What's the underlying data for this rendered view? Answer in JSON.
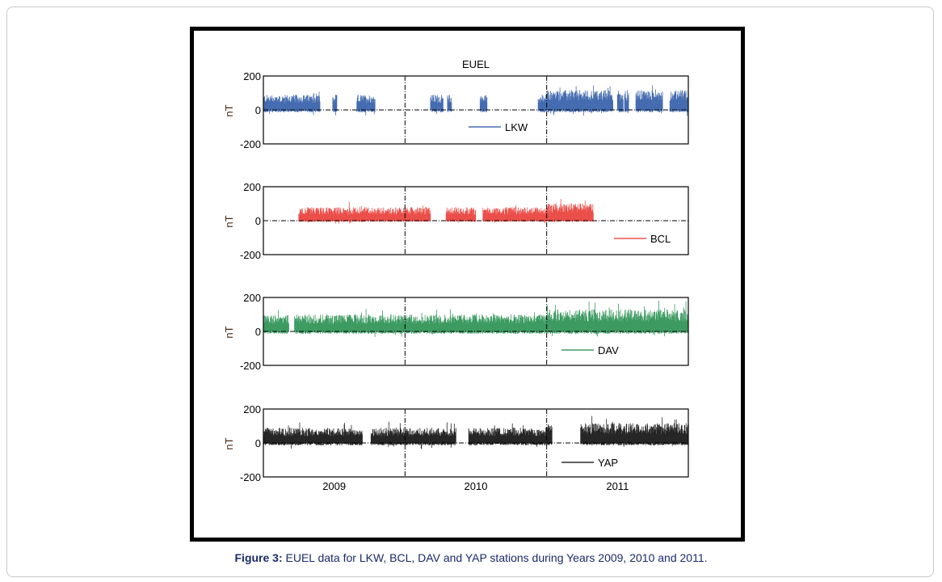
{
  "caption": {
    "label": "Figure 3:",
    "text": " EUEL data for LKW, BCL, DAV and YAP stations during Years 2009, 2010 and 2011."
  },
  "chart_data": {
    "type": "line",
    "title": "EUEL",
    "xlabel": "",
    "ylabel": "nT",
    "xlim": [
      2008.5,
      2011.5
    ],
    "ylim": [
      -200,
      200
    ],
    "yticks": [
      "200",
      "0",
      "-200"
    ],
    "xticks": [
      {
        "value": 2009,
        "label": "2009"
      },
      {
        "value": 2010,
        "label": "2010"
      },
      {
        "value": 2011,
        "label": "2011"
      }
    ],
    "year_dividers": [
      2009.5,
      2010.5
    ],
    "series": [
      {
        "name": "LKW",
        "color": "#2452a2",
        "typical_max": 90,
        "typical_min": -20,
        "segments": [
          [
            2008.5,
            2008.9
          ],
          [
            2008.99,
            2009.02
          ],
          [
            2009.16,
            2009.29
          ],
          [
            2009.68,
            2009.77
          ],
          [
            2009.8,
            2009.83
          ],
          [
            2010.03,
            2010.08
          ],
          [
            2010.44,
            2010.97
          ],
          [
            2011.0,
            2011.04
          ],
          [
            2011.05,
            2011.08
          ],
          [
            2011.13,
            2011.32
          ],
          [
            2011.37,
            2011.5
          ]
        ]
      },
      {
        "name": "BCL",
        "color": "#e8302a",
        "typical_max": 80,
        "typical_min": -10,
        "segments": [
          [
            2008.75,
            2009.68
          ],
          [
            2009.79,
            2010.0
          ],
          [
            2010.05,
            2010.83
          ]
        ]
      },
      {
        "name": "DAV",
        "color": "#1b8a47",
        "typical_max": 100,
        "typical_min": -20,
        "segments": [
          [
            2008.5,
            2008.68
          ],
          [
            2008.72,
            2011.5
          ]
        ]
      },
      {
        "name": "YAP",
        "color": "#000000",
        "typical_max": 90,
        "typical_min": -20,
        "segments": [
          [
            2008.5,
            2009.2
          ],
          [
            2009.26,
            2009.86
          ],
          [
            2009.95,
            2010.54
          ],
          [
            2010.74,
            2011.5
          ]
        ]
      }
    ]
  }
}
